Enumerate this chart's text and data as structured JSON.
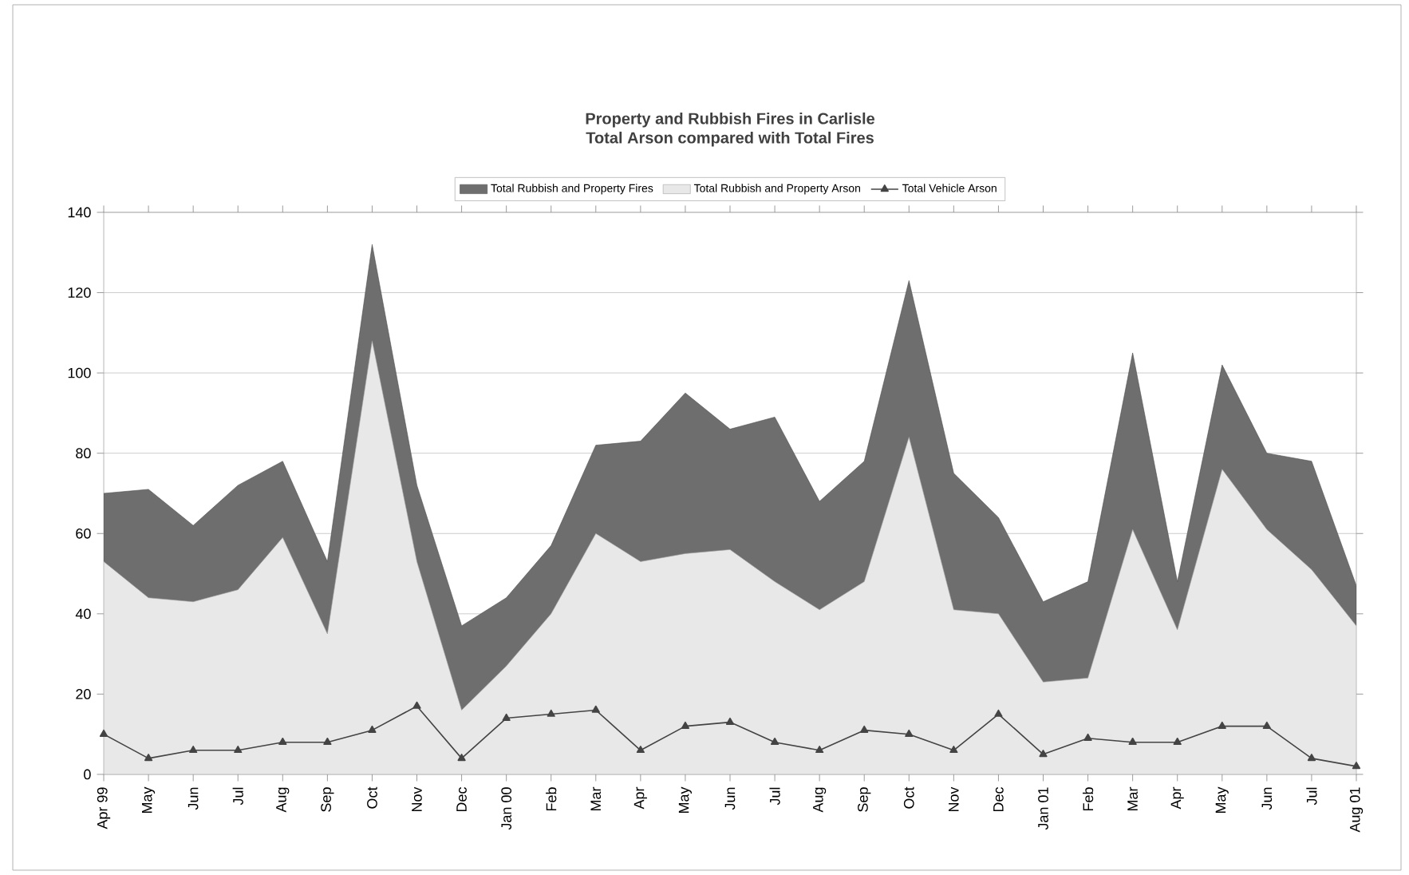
{
  "chart_data": {
    "type": "area",
    "title": "Property and Rubbish Fires in Carlisle",
    "subtitle": "Total Arson compared with Total Fires",
    "categories": [
      "Apr 99",
      "May",
      "Jun",
      "Jul",
      "Aug",
      "Sep",
      "Oct",
      "Nov",
      "Dec",
      "Jan 00",
      "Feb",
      "Mar",
      "Apr",
      "May",
      "Jun",
      "Jul",
      "Aug",
      "Sep",
      "Oct",
      "Nov",
      "Dec",
      "Jan 01",
      "Feb",
      "Mar",
      "Apr",
      "May",
      "Jun",
      "Jul",
      "Aug 01"
    ],
    "series": [
      {
        "name": "Total Rubbish and Property Fires",
        "color": "#6e6e6e",
        "values": [
          70,
          71,
          62,
          72,
          78,
          53,
          132,
          72,
          37,
          44,
          57,
          82,
          83,
          95,
          86,
          89,
          68,
          78,
          123,
          75,
          64,
          43,
          48,
          105,
          48,
          102,
          80,
          78,
          47
        ]
      },
      {
        "name": "Total Rubbish and Property Arson",
        "color": "#e8e8e8",
        "values": [
          53,
          44,
          43,
          46,
          59,
          35,
          108,
          53,
          16,
          27,
          40,
          60,
          53,
          55,
          56,
          48,
          41,
          48,
          84,
          41,
          40,
          23,
          24,
          61,
          36,
          76,
          61,
          51,
          37
        ]
      },
      {
        "name": "Total Vehicle Arson",
        "type": "line",
        "color": "#444444",
        "marker": "triangle",
        "values": [
          10,
          4,
          6,
          6,
          8,
          8,
          11,
          17,
          4,
          14,
          15,
          16,
          6,
          12,
          13,
          8,
          6,
          11,
          10,
          6,
          15,
          5,
          9,
          8,
          8,
          12,
          12,
          4,
          2
        ]
      }
    ],
    "ylim": [
      0,
      140
    ],
    "yticks": [
      0,
      20,
      40,
      60,
      80,
      100,
      120,
      140
    ],
    "grid": "y",
    "legend": "top"
  }
}
